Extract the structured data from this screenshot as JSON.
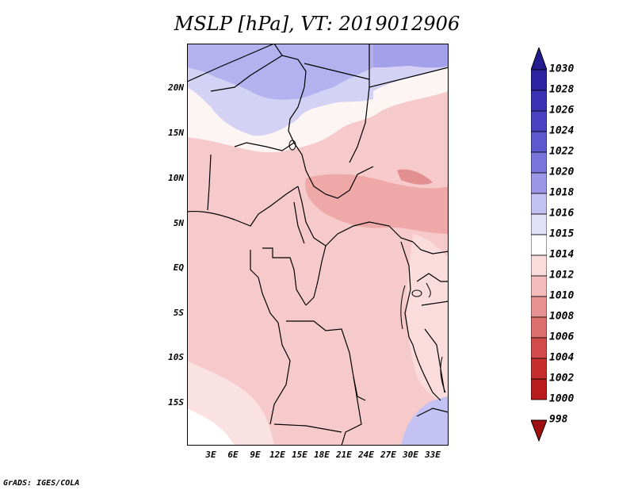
{
  "title": "MSLP [hPa], VT: 2019012906",
  "credit": "GrADS: IGES/COLA",
  "map": {
    "region": "Central Africa",
    "lat_labels": [
      "20N",
      "15N",
      "10N",
      "5N",
      "EQ",
      "5S",
      "10S",
      "15S"
    ],
    "lon_labels": [
      "3E",
      "6E",
      "9E",
      "12E",
      "15E",
      "18E",
      "21E",
      "24E",
      "27E",
      "30E",
      "33E"
    ]
  },
  "colorbar": {
    "labels": [
      "1030",
      "1028",
      "1026",
      "1024",
      "1022",
      "1020",
      "1018",
      "1016",
      "1015",
      "1014",
      "1012",
      "1010",
      "1008",
      "1006",
      "1004",
      "1002",
      "1000",
      "998"
    ],
    "colors": [
      "#231b8e",
      "#2c23a3",
      "#3a31b5",
      "#4a42c3",
      "#5d57d0",
      "#7a75dc",
      "#9b97e6",
      "#c4c2f2",
      "#e1e0f8",
      "#ffffff",
      "#fbdcdc",
      "#f4bcbc",
      "#e99292",
      "#de6f6f",
      "#d24a4a",
      "#c72e2e",
      "#b91c1c",
      "#a01010"
    ]
  }
}
